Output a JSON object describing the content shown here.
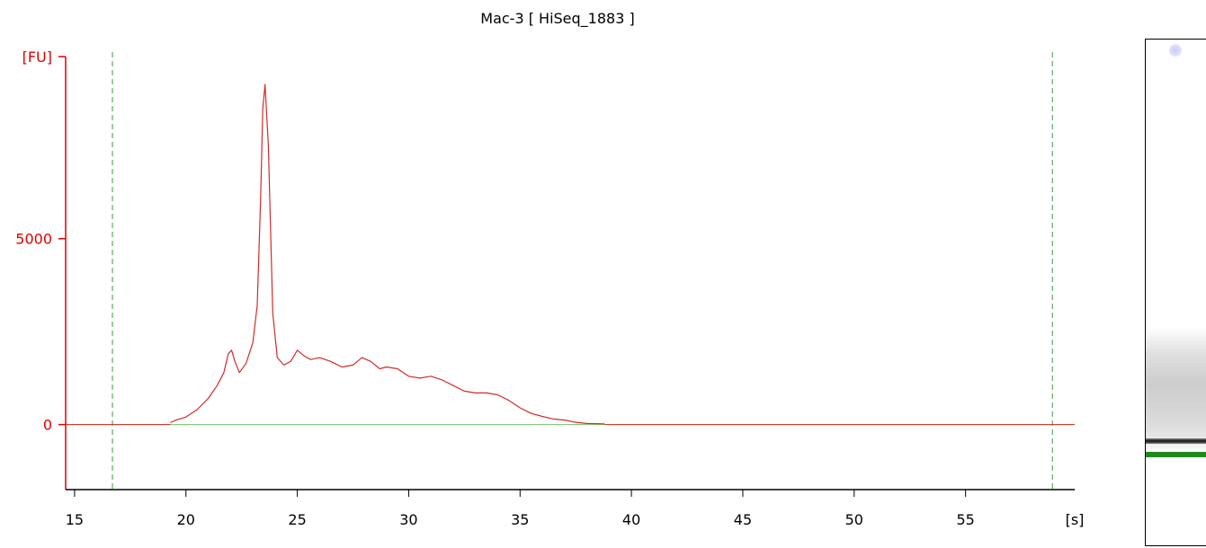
{
  "chart_data": {
    "type": "line",
    "title": "Mac-3  [ HiSeq_1883 ]",
    "ylabel": "[FU]",
    "xlabel": "[s]",
    "xlim": [
      14.6,
      59.9
    ],
    "ylim": [
      -1750,
      9900
    ],
    "x_ticks": [
      15,
      20,
      25,
      30,
      35,
      40,
      45,
      50,
      55
    ],
    "y_ticks": [
      0,
      5000
    ],
    "markers_x": [
      16.7,
      58.9
    ],
    "baseline": 0,
    "colors": {
      "trace": "#d42a2a",
      "axis_y": "#e00000",
      "axis_x": "#000000",
      "baseline": "#6fc46f",
      "marker": "#3a9a3a"
    },
    "series": [
      {
        "x": [
          19.3,
          19.6,
          20.0,
          20.5,
          21.0,
          21.4,
          21.7,
          21.9,
          22.05,
          22.2,
          22.4,
          22.7,
          23.0,
          23.2,
          23.35,
          23.45,
          23.55,
          23.7,
          23.9,
          24.1,
          24.4,
          24.7,
          25.0,
          25.3,
          25.6,
          26.0,
          26.5,
          27.0,
          27.5,
          27.9,
          28.3,
          28.7,
          29.0,
          29.5,
          30.0,
          30.5,
          31.0,
          31.5,
          32.0,
          32.5,
          33.0,
          33.5,
          34.0,
          34.5,
          35.0,
          35.5,
          36.0,
          36.5,
          37.0,
          37.5,
          38.0,
          38.8
        ],
        "y": [
          50,
          130,
          200,
          400,
          700,
          1050,
          1400,
          1900,
          2000,
          1700,
          1400,
          1650,
          2200,
          3200,
          6000,
          8500,
          9150,
          7500,
          3000,
          1800,
          1600,
          1700,
          2000,
          1850,
          1750,
          1800,
          1700,
          1550,
          1600,
          1800,
          1700,
          1500,
          1550,
          1500,
          1300,
          1250,
          1300,
          1200,
          1050,
          900,
          850,
          850,
          800,
          650,
          450,
          300,
          220,
          150,
          120,
          60,
          30,
          20
        ]
      }
    ]
  }
}
